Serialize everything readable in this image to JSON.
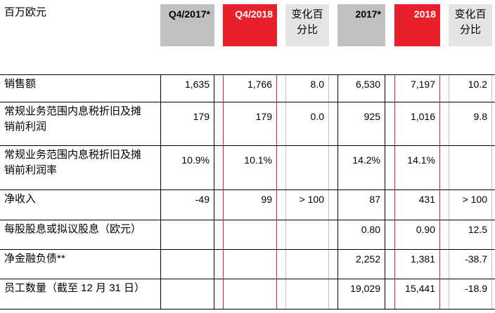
{
  "unit_label": "百万欧元",
  "headers": [
    "Q4/2017*",
    "Q4/2018",
    "变化百\n分比",
    "2017*",
    "2018",
    "变化百\n分比"
  ],
  "rows": [
    {
      "label": "销售额",
      "values": [
        "1,635",
        "1,766",
        "8.0",
        "6,530",
        "7,197",
        "10.2"
      ]
    },
    {
      "label": "常规业务范围内息税折旧及摊\n销前利润",
      "values": [
        "179",
        "179",
        "0.0",
        "925",
        "1,016",
        "9.8"
      ]
    },
    {
      "label": "常规业务范围内息税折旧及摊\n销前利润率",
      "values": [
        "10.9%",
        "10.1%",
        "",
        "14.2%",
        "14.1%",
        ""
      ]
    },
    {
      "label": "净收入",
      "values": [
        "-49",
        "99",
        "> 100",
        "87",
        "431",
        "> 100"
      ]
    },
    {
      "label": "每股股息或拟议股息（欧元）",
      "values": [
        "",
        "",
        "",
        "0.80",
        "0.90",
        "12.5"
      ]
    },
    {
      "label": "净金融负债**",
      "values": [
        "",
        "",
        "",
        "2,252",
        "1,381",
        "-38.7"
      ]
    },
    {
      "label": "员工数量（截至 12 月 31 日）",
      "values": [
        "",
        "",
        "",
        "19,029",
        "15,441",
        "-18.9"
      ]
    }
  ]
}
